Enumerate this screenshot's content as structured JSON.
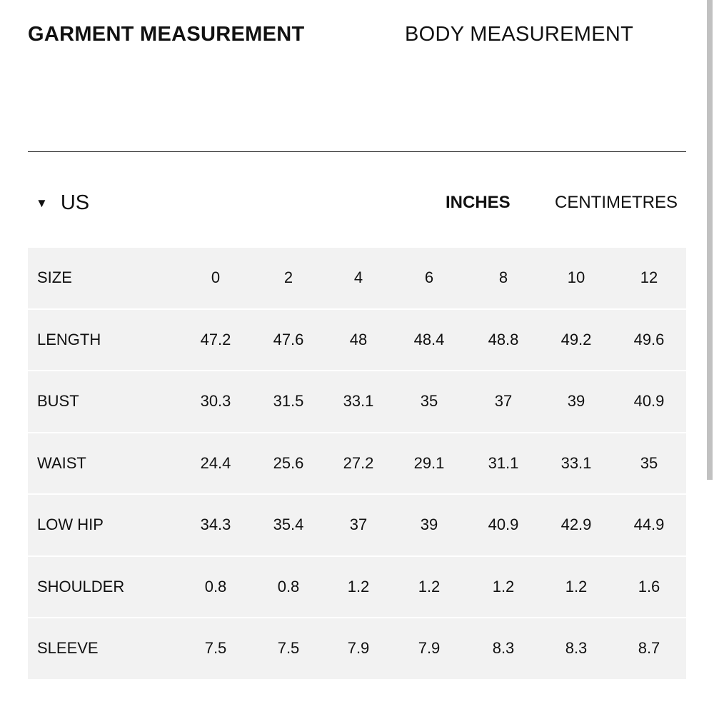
{
  "tabs": {
    "garment": "GARMENT MEASUREMENT",
    "body": "BODY MEASUREMENT",
    "active": "garment"
  },
  "region": {
    "label": "US",
    "icon": "triangle-down-icon"
  },
  "units": {
    "inches": "INCHES",
    "centimetres": "CENTIMETRES",
    "active": "inches"
  },
  "table": {
    "rows": [
      {
        "label": "SIZE",
        "values": [
          "0",
          "2",
          "4",
          "6",
          "8",
          "10",
          "12"
        ]
      },
      {
        "label": "LENGTH",
        "values": [
          "47.2",
          "47.6",
          "48",
          "48.4",
          "48.8",
          "49.2",
          "49.6"
        ]
      },
      {
        "label": "BUST",
        "values": [
          "30.3",
          "31.5",
          "33.1",
          "35",
          "37",
          "39",
          "40.9"
        ]
      },
      {
        "label": "WAIST",
        "values": [
          "24.4",
          "25.6",
          "27.2",
          "29.1",
          "31.1",
          "33.1",
          "35"
        ]
      },
      {
        "label": "LOW HIP",
        "values": [
          "34.3",
          "35.4",
          "37",
          "39",
          "40.9",
          "42.9",
          "44.9"
        ]
      },
      {
        "label": "SHOULDER",
        "values": [
          "0.8",
          "0.8",
          "1.2",
          "1.2",
          "1.2",
          "1.2",
          "1.6"
        ]
      },
      {
        "label": "SLEEVE",
        "values": [
          "7.5",
          "7.5",
          "7.9",
          "7.9",
          "8.3",
          "8.3",
          "8.7"
        ]
      }
    ]
  },
  "colors": {
    "table_bg": "#f2f2f2",
    "text": "#111111",
    "scrollbar": "#c1c1c1"
  }
}
